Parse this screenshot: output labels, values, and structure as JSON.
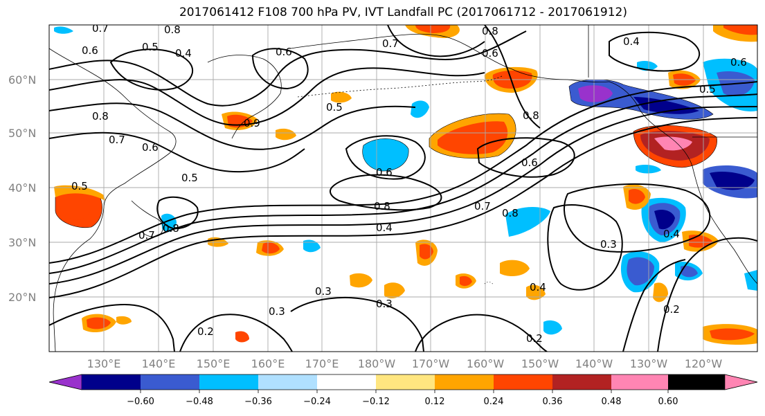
{
  "title": "2017061412 F108 700 hPa PV, IVT Landfall PC (2017061712 - 2017061912)",
  "lat_labels": [
    "60°N",
    "50°N",
    "40°N",
    "30°N",
    "20°N"
  ],
  "lon_labels": [
    "130°E",
    "140°E",
    "150°E",
    "160°E",
    "170°E",
    "180°W",
    "170°W",
    "160°W",
    "150°W",
    "140°W",
    "130°W",
    "120°W"
  ],
  "colorbar": {
    "tick_labels": [
      "−0.60",
      "−0.48",
      "−0.36",
      "−0.24",
      "−0.12",
      "0.12",
      "0.24",
      "0.36",
      "0.48",
      "0.60"
    ],
    "colors": [
      "#9932cc",
      "#00008b",
      "#3a5bd0",
      "#00bfff",
      "#b0e0ff",
      "#ffffff",
      "#ffe680",
      "#ffa500",
      "#ff4500",
      "#b22222",
      "#ff85b3"
    ]
  },
  "contour_labels": [
    "0.7",
    "0.8",
    "0.6",
    "0.5",
    "0.4",
    "0.6",
    "0.8",
    "0.7",
    "0.6",
    "0.8",
    "0.5",
    "0.4",
    "0.6",
    "0.5",
    "0.9",
    "0.8",
    "0.7",
    "0.6",
    "0.5",
    "0.8",
    "0.4",
    "0.7",
    "0.8",
    "0.6",
    "0.5",
    "0.7",
    "0.8",
    "0.3",
    "0.3",
    "0.3",
    "0.2",
    "0.2",
    "0.4",
    "0.3",
    "0.4",
    "0.6",
    "0.2"
  ]
}
